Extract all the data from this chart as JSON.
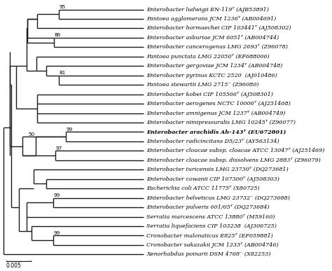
{
  "taxa": [
    {
      "name": "Enterobacter ludwigii EN-119ᵀ (AJB53891)",
      "y": 27,
      "bold": false
    },
    {
      "name": "Pantoea agglomerans JCM 1236ᵀ (AB004691)",
      "y": 26,
      "bold": false
    },
    {
      "name": "Enterobacter hormaechei CIP 103441ᵀ (AJ508302)",
      "y": 25,
      "bold": false
    },
    {
      "name": "Enterobacter asburiae JCM 6051ᵀ (AB004744)",
      "y": 24,
      "bold": false
    },
    {
      "name": "Enterobacter cancerogenus LMG 2693ᵀ (Z96078)",
      "y": 23,
      "bold": false
    },
    {
      "name": "Pantoea punctata LMG 22050ᵀ (EF688006)",
      "y": 22,
      "bold": false
    },
    {
      "name": "Enterobacter gergoviae JCM 1234ᵀ (AB004748)",
      "y": 21,
      "bold": false
    },
    {
      "name": "Enterobacter pyrinus KCTC 2520  (AJ010486)",
      "y": 20,
      "bold": false
    },
    {
      "name": "Pantoea stewartii LMG 2715⁻ (Z96080)",
      "y": 19,
      "bold": false
    },
    {
      "name": "Enterobacter kobei CIP 105566ᵀ (AJ508301)",
      "y": 18,
      "bold": false
    },
    {
      "name": "Enterobacter aerogenes NCTC 10006ᵀ (AJ251468)",
      "y": 17,
      "bold": false
    },
    {
      "name": "Enterobacter amnigenus JCM 1237ᵀ (AB004749)",
      "y": 16,
      "bold": false
    },
    {
      "name": "Enterobacter nimipressuralis LMG 10245ᵀ (Z96077)",
      "y": 15,
      "bold": false
    },
    {
      "name": "Enterobacter arachidis Ah-143ᵀ (EU672801)",
      "y": 14,
      "bold": true
    },
    {
      "name": "Enterobacter radicincitans D5/23ᵀ (AY563134)",
      "y": 13,
      "bold": false
    },
    {
      "name": "Enterobacter cloacae subsp. cloacae ATCC 13047ᵀ (AJ251469)",
      "y": 12,
      "bold": false
    },
    {
      "name": "Enterobacter cloacae subsp. dissolvens LMG 2883ᵀ (Z96079)",
      "y": 11,
      "bold": false
    },
    {
      "name": "Enterobacter turicensis LMG 23730ᵀ (DQ273681)",
      "y": 10,
      "bold": false
    },
    {
      "name": "Enterobacter cowanii CIP 107300ᵀ (AJ508303)",
      "y": 9,
      "bold": false
    },
    {
      "name": "Escherichia coli ATCC 11775ᵀ (X80725)",
      "y": 8,
      "bold": false
    },
    {
      "name": "Enterobacter helveticus LMG 23732⁻ (DQ273688)",
      "y": 7,
      "bold": false
    },
    {
      "name": "Enterobacter pulveris 601/05ᵀ (DQ273684)",
      "y": 6,
      "bold": false
    },
    {
      "name": "Serratia marcescens ATCC 13880ᵀ (M59160)",
      "y": 5,
      "bold": false
    },
    {
      "name": "Serratia liquefaciens CIP 103238  (AJ306725)",
      "y": 4,
      "bold": false
    },
    {
      "name": "Cronobacter malonaticus E825ᵀ (EF059881)",
      "y": 3,
      "bold": false
    },
    {
      "name": "Cronobacter sakazakii JCM 1233ᵀ (AB004746)",
      "y": 2,
      "bold": false
    },
    {
      "name": "Xenorhabdus poinarii DSM 4768⁻ (X82253)",
      "y": 1,
      "bold": false
    }
  ],
  "line_color": "#1a1a1a",
  "text_color": "#000000",
  "background_color": "#ffffff",
  "font_size": 5.8,
  "scale_bar_label": "0.005"
}
